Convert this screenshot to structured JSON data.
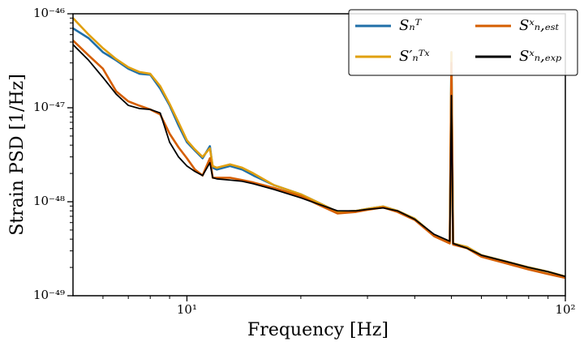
{
  "chart_data": {
    "type": "line",
    "xlabel": "Frequency [Hz]",
    "ylabel": "Strain PSD [1/Hz]",
    "xscale": "log",
    "yscale": "log",
    "xlim": [
      5,
      100
    ],
    "ylim": [
      1e-49,
      1e-46
    ],
    "xticks": [
      {
        "value": 10,
        "label": "10¹"
      },
      {
        "value": 100,
        "label": "10²"
      }
    ],
    "xminorticks": [
      6,
      7,
      8,
      9,
      20,
      30,
      40,
      50,
      60,
      70,
      80,
      90
    ],
    "yticks": [
      {
        "value": 1e-49,
        "label": "10⁻⁴⁹"
      },
      {
        "value": 1e-48,
        "label": "10⁻⁴⁸"
      },
      {
        "value": 1e-47,
        "label": "10⁻⁴⁷"
      },
      {
        "value": 1e-46,
        "label": "10⁻⁴⁶"
      }
    ],
    "yminorticks": [
      2e-49,
      3e-49,
      4e-49,
      5e-49,
      6e-49,
      7e-49,
      8e-49,
      9e-49,
      2e-48,
      3e-48,
      4e-48,
      5e-48,
      6e-48,
      7e-48,
      8e-48,
      9e-48,
      2e-47,
      3e-47,
      4e-47,
      5e-47,
      6e-47,
      7e-47,
      8e-47,
      9e-47
    ],
    "legend": "upper right",
    "x": [
      5,
      5.5,
      6,
      6.5,
      7,
      7.5,
      8,
      8.5,
      9,
      9.5,
      10,
      10.5,
      11,
      11.5,
      11.7,
      12,
      13,
      14,
      15,
      17,
      20,
      22,
      25,
      28,
      30,
      33,
      36,
      40,
      45,
      49.5,
      50,
      50.5,
      55,
      60,
      70,
      80,
      90,
      100
    ],
    "series": [
      {
        "name": "Sₙᵀ",
        "color": "#1f6fa8",
        "values": [
          7e-47,
          5.5e-47,
          3.9e-47,
          3.2e-47,
          2.6e-47,
          2.3e-47,
          2.25e-47,
          1.6e-47,
          1.06e-47,
          6.5e-48,
          4.3e-48,
          3.5e-48,
          2.9e-48,
          3.9e-48,
          2.3e-48,
          2.2e-48,
          2.4e-48,
          2.2e-48,
          1.9e-48,
          1.5e-48,
          1.2e-48,
          1e-48,
          7.8e-49,
          8e-49,
          8.4e-49,
          8.9e-49,
          8e-49,
          6.6e-49,
          4.4e-49,
          3.7e-49,
          3.9e-47,
          3.6e-49,
          3.3e-49,
          2.7e-49,
          2.3e-49,
          2e-49,
          1.8e-49,
          1.6e-49
        ]
      },
      {
        "name": "S′ₙᵀˣ",
        "color": "#e0a010",
        "values": [
          9e-47,
          6e-47,
          4.3e-47,
          3.3e-47,
          2.7e-47,
          2.4e-47,
          2.3e-47,
          1.7e-47,
          1.1e-47,
          7e-48,
          4.5e-48,
          3.6e-48,
          3e-48,
          3.7e-48,
          2.4e-48,
          2.3e-48,
          2.5e-48,
          2.3e-48,
          2e-48,
          1.5e-48,
          1.2e-48,
          1e-48,
          7.8e-49,
          8e-49,
          8.4e-49,
          8.9e-49,
          8e-49,
          6.6e-49,
          4.4e-49,
          3.7e-49,
          3.9e-47,
          3.6e-49,
          3.3e-49,
          2.7e-49,
          2.3e-49,
          2e-49,
          1.8e-49,
          1.6e-49
        ]
      },
      {
        "name": "Sˣₙ,ₑₛₜ",
        "color": "#d55e00",
        "values": [
          5.2e-47,
          3.6e-47,
          2.6e-47,
          1.5e-47,
          1.17e-47,
          1.05e-47,
          9.6e-48,
          8.5e-48,
          5.3e-48,
          3.8e-48,
          2.9e-48,
          2.2e-48,
          1.9e-48,
          2.9e-48,
          1.8e-48,
          1.8e-48,
          1.8e-48,
          1.7e-48,
          1.6e-48,
          1.4e-48,
          1.15e-48,
          9.5e-49,
          7.5e-49,
          7.8e-49,
          8.2e-49,
          8.7e-49,
          7.8e-49,
          6.4e-49,
          4.3e-49,
          3.6e-49,
          3e-47,
          3.5e-49,
          3.2e-49,
          2.6e-49,
          2.2e-49,
          1.9e-49,
          1.7e-49,
          1.55e-49
        ]
      },
      {
        "name": "Sˣₙ,ₑₓₚ",
        "color": "#000000",
        "values": [
          4.7e-47,
          3.2e-47,
          2.1e-47,
          1.4e-47,
          1.06e-47,
          9.8e-48,
          9.6e-48,
          8.8e-48,
          4.3e-48,
          3e-48,
          2.4e-48,
          2.1e-48,
          1.9e-48,
          2.6e-48,
          1.8e-48,
          1.75e-48,
          1.7e-48,
          1.65e-48,
          1.55e-48,
          1.35e-48,
          1.1e-48,
          9.6e-49,
          8e-49,
          8e-49,
          8.3e-49,
          8.6e-49,
          8e-49,
          6.5e-49,
          4.5e-49,
          3.8e-49,
          1.35e-47,
          3.6e-49,
          3.2e-49,
          2.7e-49,
          2.3e-49,
          2e-49,
          1.8e-49,
          1.6e-49
        ]
      }
    ]
  }
}
